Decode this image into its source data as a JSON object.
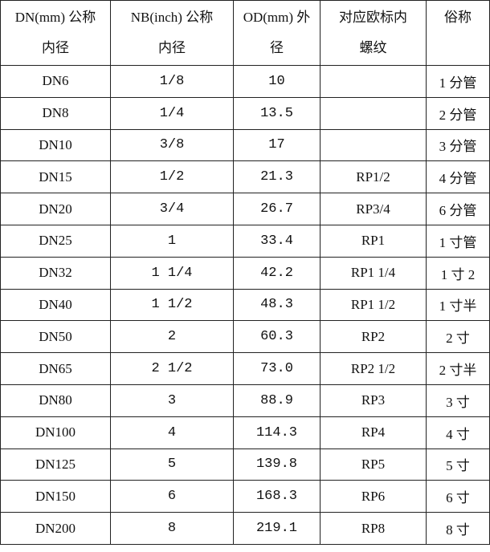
{
  "headers": [
    [
      "DN(mm) 公称",
      "内径"
    ],
    [
      "NB(inch) 公称",
      "内径"
    ],
    [
      "OD(mm) 外",
      "径"
    ],
    [
      "对应欧标内",
      "螺纹"
    ],
    [
      "俗称",
      ""
    ]
  ],
  "rows": [
    [
      "DN6",
      "1/8",
      "10",
      "",
      "1 分管"
    ],
    [
      "DN8",
      "1/4",
      "13.5",
      "",
      "2 分管"
    ],
    [
      "DN10",
      "3/8",
      "17",
      "",
      "3 分管"
    ],
    [
      "DN15",
      "1/2",
      "21.3",
      "RP1/2",
      "4 分管"
    ],
    [
      "DN20",
      "3/4",
      "26.7",
      "RP3/4",
      "6 分管"
    ],
    [
      "DN25",
      "1",
      "33.4",
      "RP1",
      "1 寸管"
    ],
    [
      "DN32",
      "1 1/4",
      "42.2",
      "RP1 1/4",
      "1 寸 2"
    ],
    [
      "DN40",
      "1 1/2",
      "48.3",
      "RP1 1/2",
      "1 寸半"
    ],
    [
      "DN50",
      "2",
      "60.3",
      "RP2",
      "2 寸"
    ],
    [
      "DN65",
      "2 1/2",
      "73.0",
      "RP2 1/2",
      "2 寸半"
    ],
    [
      "DN80",
      "3",
      "88.9",
      "RP3",
      "3 寸"
    ],
    [
      "DN100",
      "4",
      "114.3",
      "RP4",
      "4 寸"
    ],
    [
      "DN125",
      "5",
      "139.8",
      "RP5",
      "5 寸"
    ],
    [
      "DN150",
      "6",
      "168.3",
      "RP6",
      "6 寸"
    ],
    [
      "DN200",
      "8",
      "219.1",
      "RP8",
      "8 寸"
    ]
  ]
}
